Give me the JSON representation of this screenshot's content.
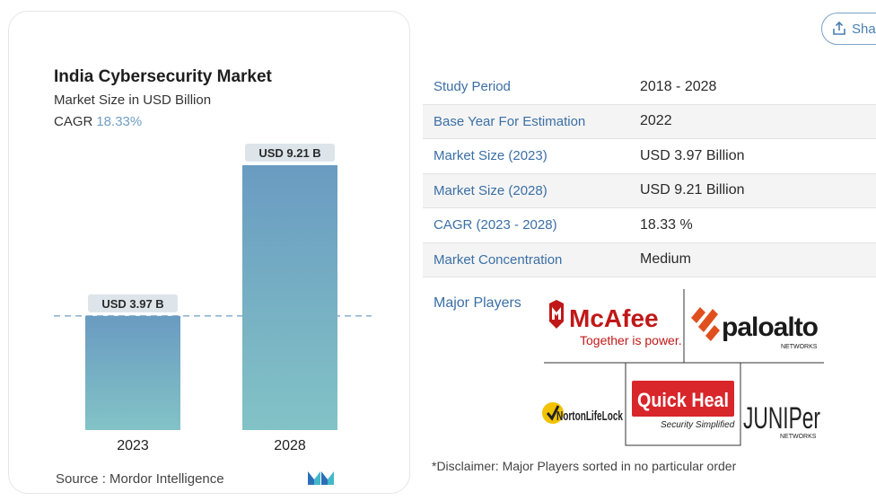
{
  "share": {
    "label": "Sha"
  },
  "chart": {
    "title": "India Cybersecurity Market",
    "subtitle": "Market Size in USD Billion",
    "cagr_label": "CAGR",
    "cagr_value": "18.33%",
    "source": "Source :  Mordor Intelligence"
  },
  "chart_data": {
    "type": "bar",
    "title": "India Cybersecurity Market",
    "subtitle": "Market Size in USD Billion",
    "categories": [
      "2023",
      "2028"
    ],
    "values": [
      3.97,
      9.21
    ],
    "data_labels": [
      "USD 3.97 B",
      "USD 9.21 B"
    ],
    "ylim": [
      0,
      9.21
    ],
    "grid": false,
    "reference_line": 3.97,
    "colors": {
      "bar_top": "#6a9bc1",
      "bar_bottom": "#82c3c6",
      "label_bg": "#dde5ea",
      "ref_line": "#6f9fc4"
    }
  },
  "table": [
    {
      "key": "Study Period",
      "value": "2018 - 2028"
    },
    {
      "key": "Base Year For Estimation",
      "value": "2022"
    },
    {
      "key": "Market Size (2023)",
      "value": "USD 3.97 Billion"
    },
    {
      "key": "Market Size (2028)",
      "value": "USD 9.21 Billion"
    },
    {
      "key": "CAGR (2023 - 2028)",
      "value": "18.33 %"
    },
    {
      "key": "Market Concentration",
      "value": "Medium"
    }
  ],
  "players": {
    "label": "Major Players",
    "logos": [
      {
        "name": "McAfee",
        "tagline": "Together is power."
      },
      {
        "name": "paloalto",
        "tagline": "NETWORKS"
      },
      {
        "name": "NortonLifeLock"
      },
      {
        "name": "Quick Heal",
        "tagline": "Security Simplified"
      },
      {
        "name": "JUNIPer",
        "tagline": "NETWORKS"
      }
    ]
  },
  "disclaimer": "*Disclaimer: Major Players sorted in no particular order",
  "colors": {
    "accent": "#3b6fa5",
    "mcafee_red": "#c01818",
    "quickheal_red": "#d8262b"
  }
}
